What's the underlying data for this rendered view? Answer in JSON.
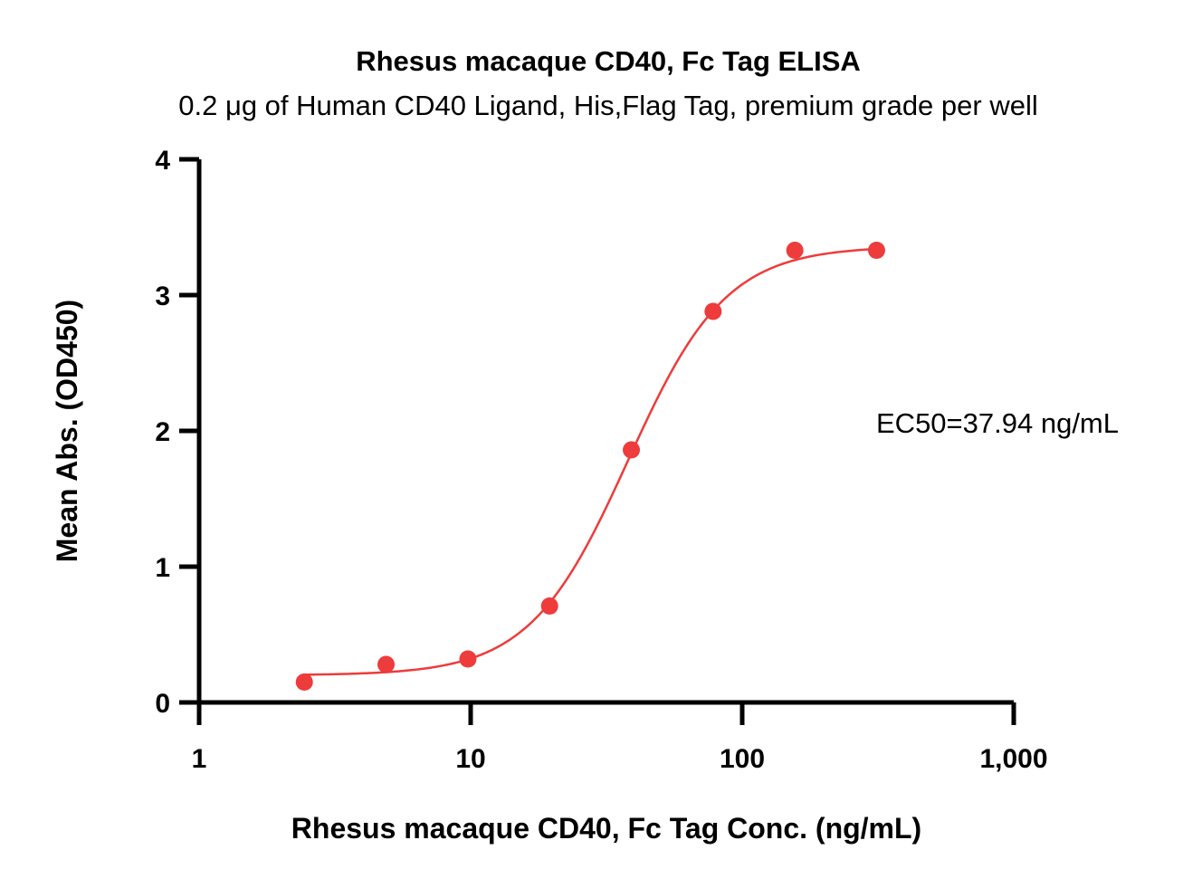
{
  "chart_data": {
    "type": "scatter",
    "title": "Rhesus macaque CD40, Fc Tag ELISA",
    "subtitle": "0.2 μg of Human CD40 Ligand, His,Flag Tag, premium grade per well",
    "xlabel": "Rhesus macaque CD40, Fc Tag Conc. (ng/mL)",
    "ylabel": "Mean Abs. (OD450)",
    "x_scale": "log",
    "xlim": [
      1,
      1000
    ],
    "ylim": [
      0,
      4
    ],
    "x_ticks": [
      {
        "value": 1,
        "label": "1"
      },
      {
        "value": 10,
        "label": "10"
      },
      {
        "value": 100,
        "label": "100"
      },
      {
        "value": 1000,
        "label": "1,000"
      }
    ],
    "y_ticks": [
      {
        "value": 0,
        "label": "0"
      },
      {
        "value": 1,
        "label": "1"
      },
      {
        "value": 2,
        "label": "2"
      },
      {
        "value": 3,
        "label": "3"
      },
      {
        "value": 4,
        "label": "4"
      }
    ],
    "grid": false,
    "series": [
      {
        "color": "#ee3b3b",
        "x": [
          2.44,
          4.88,
          9.77,
          19.53,
          39.06,
          78.13,
          156.25,
          312.5
        ],
        "y": [
          0.15,
          0.28,
          0.32,
          0.71,
          1.86,
          2.88,
          3.33,
          3.33
        ],
        "fit": {
          "model": "4PL",
          "bottom": 0.2,
          "top": 3.36,
          "ec50": 37.94,
          "hill": 2.4
        }
      }
    ],
    "annotations": [
      {
        "text": "EC50=37.94 ng/mL"
      }
    ]
  }
}
